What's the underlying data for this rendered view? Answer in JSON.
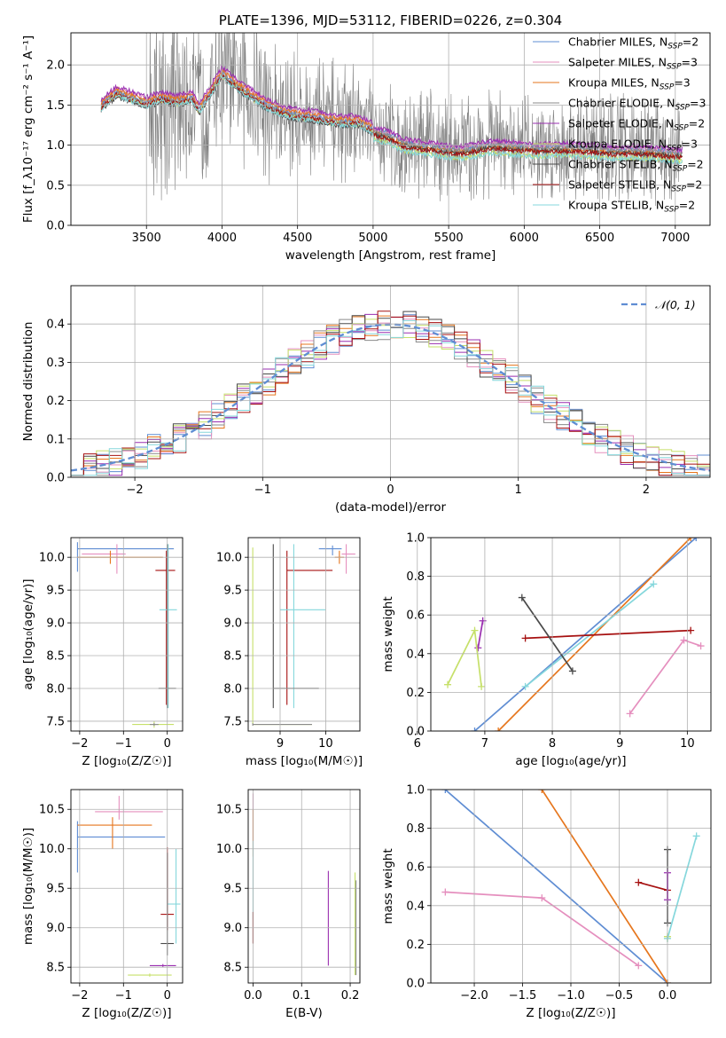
{
  "colors": {
    "Chabrier MILES": "#5f8dd3",
    "Salpeter MILES": "#e58fbe",
    "Kroupa MILES": "#e6761d",
    "Chabrier ELODIE": "#8a8a8a",
    "Salpeter ELODIE": "#9a2fb0",
    "Kroupa ELODIE": "#c6e06a",
    "Chabrier STELIB": "#4a4a4a",
    "Salpeter STELIB": "#a61010",
    "Kroupa STELIB": "#85d7dc"
  },
  "chart_data": [
    {
      "id": "spectrum",
      "type": "line",
      "title": "PLATE=1396, MJD=53112, FIBERID=0226, z=0.304",
      "xlabel": "wavelength [Angstrom, rest frame]",
      "ylabel": "Flux [f_λ10⁻¹⁷ erg cm⁻² s⁻¹ A⁻¹]",
      "xlim": [
        3000,
        7230
      ],
      "ylim": [
        0,
        2.4
      ],
      "xticks": [
        "3500",
        "4000",
        "4500",
        "5000",
        "5500",
        "6000",
        "6500",
        "7000"
      ],
      "yticks": [
        "0.0",
        "0.5",
        "1.0",
        "1.5",
        "2.0"
      ],
      "legend_position": "top-right",
      "legend": [
        {
          "model": "Chabrier MILES",
          "label": "Chabrier MILES, N",
          "sub": "SSP",
          "eq": "=2"
        },
        {
          "model": "Salpeter MILES",
          "label": "Salpeter MILES, N",
          "sub": "SSP",
          "eq": "=3"
        },
        {
          "model": "Kroupa MILES",
          "label": "Kroupa MILES, N",
          "sub": "SSP",
          "eq": "=3"
        },
        {
          "model": "Chabrier ELODIE",
          "label": "Chabrier ELODIE, N",
          "sub": "SSP",
          "eq": "=3"
        },
        {
          "model": "Salpeter ELODIE",
          "label": "Salpeter ELODIE, N",
          "sub": "SSP",
          "eq": "=2"
        },
        {
          "model": "Kroupa ELODIE",
          "label": "Kroupa ELODIE, N",
          "sub": "SSP",
          "eq": "=3"
        },
        {
          "model": "Chabrier STELIB",
          "label": "Chabrier STELIB, N",
          "sub": "SSP",
          "eq": "=2"
        },
        {
          "model": "Salpeter STELIB",
          "label": "Salpeter STELIB, N",
          "sub": "SSP",
          "eq": "=2"
        },
        {
          "model": "Kroupa STELIB",
          "label": "Kroupa STELIB, N",
          "sub": "SSP",
          "eq": "=2"
        }
      ],
      "data_range": [
        3200,
        7050
      ],
      "continuum": [
        [
          3200,
          1.5
        ],
        [
          3300,
          1.66
        ],
        [
          3400,
          1.6
        ],
        [
          3500,
          1.53
        ],
        [
          3600,
          1.6
        ],
        [
          3700,
          1.55
        ],
        [
          3800,
          1.6
        ],
        [
          3850,
          1.45
        ],
        [
          3900,
          1.6
        ],
        [
          3950,
          1.75
        ],
        [
          4000,
          1.9
        ],
        [
          4100,
          1.75
        ],
        [
          4200,
          1.62
        ],
        [
          4300,
          1.5
        ],
        [
          4400,
          1.42
        ],
        [
          4500,
          1.38
        ],
        [
          4600,
          1.36
        ],
        [
          4700,
          1.32
        ],
        [
          4800,
          1.3
        ],
        [
          4900,
          1.3
        ],
        [
          5000,
          1.2
        ],
        [
          5100,
          1.15
        ],
        [
          5200,
          1.05
        ],
        [
          5300,
          1.02
        ],
        [
          5400,
          1.0
        ],
        [
          5500,
          0.97
        ],
        [
          5600,
          0.96
        ],
        [
          5700,
          1.0
        ],
        [
          5800,
          1.03
        ],
        [
          5900,
          1.01
        ],
        [
          6000,
          1.0
        ],
        [
          6100,
          0.98
        ],
        [
          6200,
          1.0
        ],
        [
          6300,
          0.99
        ],
        [
          6400,
          0.98
        ],
        [
          6500,
          0.97
        ],
        [
          6600,
          0.95
        ],
        [
          6700,
          0.96
        ],
        [
          6800,
          0.95
        ],
        [
          6900,
          0.94
        ],
        [
          7000,
          0.92
        ],
        [
          7050,
          0.92
        ]
      ]
    },
    {
      "id": "residuals",
      "type": "line",
      "xlabel": "(data-model)/error",
      "ylabel": "Normed distribution",
      "xlim": [
        -2.5,
        2.5
      ],
      "ylim": [
        0,
        0.5
      ],
      "xticks": [
        "−2",
        "−1",
        "0",
        "1",
        "2"
      ],
      "yticks": [
        "0.0",
        "0.1",
        "0.2",
        "0.3",
        "0.4"
      ],
      "legend": [
        {
          "label": "𝒩(0, 1)"
        }
      ],
      "legend_position": "top-right",
      "gaussian": {
        "mu": 0,
        "sigma": 1
      }
    },
    {
      "id": "age_vs_Z",
      "type": "errorbar",
      "xlabel": "Z [log₁₀(Z/Z☉)]",
      "ylabel": "age  [log₁₀(age/yr)]",
      "xlim": [
        -2.2,
        0.35
      ],
      "ylim": [
        7.35,
        10.3
      ],
      "xticks": [
        "−2",
        "−1",
        "0"
      ],
      "yticks": [
        "7.5",
        "8.0",
        "8.5",
        "9.0",
        "9.5",
        "10.0"
      ],
      "points": [
        {
          "model": "Chabrier MILES",
          "x": -2.05,
          "xerr": [
            0,
            2.2
          ],
          "y": 10.13,
          "yerr": [
            0.35,
            0.1
          ]
        },
        {
          "model": "Salpeter MILES",
          "x": -1.15,
          "xerr": [
            0.8,
            0.2
          ],
          "y": 10.05,
          "yerr": [
            0.3,
            0.15
          ]
        },
        {
          "model": "Kroupa MILES",
          "x": -1.3,
          "xerr": [
            0.75,
            1.2
          ],
          "y": 10.0,
          "yerr": [
            0.1,
            0.1
          ]
        },
        {
          "model": "Salpeter STELIB",
          "x": -0.02,
          "xerr": [
            0.25,
            0.2
          ],
          "y": 9.8,
          "yerr": [
            2.05,
            0.3
          ]
        },
        {
          "model": "Kroupa STELIB",
          "x": 0.02,
          "xerr": [
            0.2,
            0.2
          ],
          "y": 9.2,
          "yerr": [
            1.5,
            1.0
          ]
        },
        {
          "model": "Chabrier STELIB",
          "x": 0.0,
          "xerr": [
            0.2,
            0.2
          ],
          "y": 8.0,
          "yerr": [
            0.3,
            2.2
          ]
        },
        {
          "model": "Kroupa ELODIE",
          "x": -0.3,
          "xerr": [
            0.5,
            0.45
          ],
          "y": 7.45,
          "yerr": [
            0.05,
            0.05
          ]
        },
        {
          "model": "Chabrier ELODIE",
          "x": -0.3,
          "xerr": [
            0.1,
            0.1
          ],
          "y": 7.45,
          "yerr": [
            0.02,
            0.02
          ]
        }
      ]
    },
    {
      "id": "age_vs_mass",
      "type": "errorbar",
      "xlabel": "mass [log₁₀(M/M☉)]",
      "ylabel": "",
      "xlim": [
        8.3,
        10.75
      ],
      "ylim": [
        7.35,
        10.3
      ],
      "xticks": [
        "9",
        "10"
      ],
      "yticks": [
        "7.5",
        "8.0",
        "8.5",
        "9.0",
        "9.5",
        "10.0"
      ],
      "points": [
        {
          "model": "Chabrier MILES",
          "x": 10.15,
          "xerr": [
            0.3,
            0.2
          ],
          "y": 10.13,
          "yerr": [
            0.1,
            0.05
          ]
        },
        {
          "model": "Salpeter MILES",
          "x": 10.45,
          "xerr": [
            0.1,
            0.2
          ],
          "y": 10.05,
          "yerr": [
            0.3,
            0.15
          ]
        },
        {
          "model": "Kroupa MILES",
          "x": 10.3,
          "xerr": [
            0.1,
            0.1
          ],
          "y": 10.0,
          "yerr": [
            0.1,
            0.1
          ]
        },
        {
          "model": "Salpeter STELIB",
          "x": 9.15,
          "xerr": [
            0,
            1.0
          ],
          "y": 9.8,
          "yerr": [
            2.05,
            0.3
          ]
        },
        {
          "model": "Kroupa STELIB",
          "x": 9.3,
          "xerr": [
            0.3,
            0.7
          ],
          "y": 9.2,
          "yerr": [
            1.5,
            1.0
          ]
        },
        {
          "model": "Chabrier STELIB",
          "x": 8.85,
          "xerr": [
            0,
            1.0
          ],
          "y": 8.0,
          "yerr": [
            0.3,
            2.2
          ]
        },
        {
          "model": "Kroupa ELODIE",
          "x": 8.4,
          "xerr": [
            0,
            1.3
          ],
          "y": 7.45,
          "yerr": [
            0,
            2.7
          ]
        },
        {
          "model": "Chabrier ELODIE",
          "x": 8.4,
          "xerr": [
            0,
            1.3
          ],
          "y": 7.45,
          "yerr": [
            0.02,
            0.02
          ]
        }
      ]
    },
    {
      "id": "weight_vs_age",
      "type": "line",
      "xlabel": "age  [log₁₀(age/yr)]",
      "ylabel": "mass weight",
      "xlim": [
        6.2,
        10.35
      ],
      "ylim": [
        0,
        1
      ],
      "xticks": [
        "6",
        "7",
        "8",
        "9",
        "10"
      ],
      "yticks": [
        "0.0",
        "0.2",
        "0.4",
        "0.6",
        "0.8",
        "1.0"
      ],
      "series": [
        {
          "model": "Chabrier MILES",
          "x": [
            6.85,
            10.13
          ],
          "y": [
            0.0,
            1.0
          ]
        },
        {
          "model": "Kroupa MILES",
          "x": [
            7.2,
            10.05
          ],
          "y": [
            0.0,
            1.0
          ]
        },
        {
          "model": "Kroupa STELIB",
          "x": [
            7.6,
            9.5
          ],
          "y": [
            0.23,
            0.76
          ]
        },
        {
          "model": "Salpeter MILES",
          "x": [
            9.15,
            9.95,
            10.2
          ],
          "y": [
            0.09,
            0.47,
            0.44
          ]
        },
        {
          "model": "Salpeter STELIB",
          "x": [
            7.6,
            10.05
          ],
          "y": [
            0.48,
            0.52
          ]
        },
        {
          "model": "Chabrier STELIB",
          "x": [
            7.55,
            8.3
          ],
          "y": [
            0.69,
            0.31
          ]
        },
        {
          "model": "Salpeter ELODIE",
          "x": [
            6.9,
            6.97
          ],
          "y": [
            0.43,
            0.57
          ]
        },
        {
          "model": "Kroupa ELODIE",
          "x": [
            6.45,
            6.85,
            6.95
          ],
          "y": [
            0.24,
            0.52,
            0.23
          ]
        }
      ]
    },
    {
      "id": "mass_vs_Z",
      "type": "errorbar",
      "xlabel": "Z [log₁₀(Z/Z☉)]",
      "ylabel": "mass [log₁₀(M/M☉)]",
      "xlim": [
        -2.2,
        0.35
      ],
      "ylim": [
        8.3,
        10.75
      ],
      "xticks": [
        "−2",
        "−1",
        "0"
      ],
      "yticks": [
        "8.5",
        "9.0",
        "9.5",
        "10.0",
        "10.5"
      ],
      "points": [
        {
          "model": "Chabrier MILES",
          "x": -2.05,
          "xerr": [
            0,
            2.0
          ],
          "y": 10.15,
          "yerr": [
            0.45,
            0.2
          ]
        },
        {
          "model": "Salpeter MILES",
          "x": -1.1,
          "xerr": [
            0.55,
            1.0
          ],
          "y": 10.47,
          "yerr": [
            0.1,
            0.2
          ]
        },
        {
          "model": "Kroupa MILES",
          "x": -1.25,
          "xerr": [
            0.8,
            0.9
          ],
          "y": 10.3,
          "yerr": [
            0.3,
            0.1
          ]
        },
        {
          "model": "Salpeter STELIB",
          "x": 0.0,
          "xerr": [
            0.15,
            0.15
          ],
          "y": 9.17,
          "yerr": [
            0.2,
            0.85
          ]
        },
        {
          "model": "Kroupa STELIB",
          "x": 0.2,
          "xerr": [
            0.2,
            0.1
          ],
          "y": 9.3,
          "yerr": [
            0.5,
            0.7
          ]
        },
        {
          "model": "Chabrier STELIB",
          "x": 0.0,
          "xerr": [
            0.15,
            0.15
          ],
          "y": 8.8,
          "yerr": [
            0.15,
            1.15
          ]
        },
        {
          "model": "Salpeter ELODIE",
          "x": -0.1,
          "xerr": [
            0.3,
            0.3
          ],
          "y": 8.52,
          "yerr": [
            0.02,
            0.02
          ]
        },
        {
          "model": "Kroupa ELODIE",
          "x": -0.4,
          "xerr": [
            0.5,
            0.5
          ],
          "y": 8.4,
          "yerr": [
            0.02,
            0.02
          ]
        }
      ]
    },
    {
      "id": "mass_vs_EBV",
      "type": "errorbar",
      "xlabel": "E(B-V)",
      "ylabel": "",
      "xlim": [
        -0.01,
        0.22
      ],
      "ylim": [
        8.3,
        10.75
      ],
      "xticks": [
        "0.0",
        "0.1",
        "0.2"
      ],
      "yticks": [
        "8.5",
        "9.0",
        "9.5",
        "10.0",
        "10.5"
      ],
      "points": [
        {
          "model": "Salpeter MILES",
          "x": 0.0,
          "xerr": [
            0,
            0
          ],
          "y": 10.4,
          "yerr": [
            0.3,
            0.3
          ]
        },
        {
          "model": "Kroupa MILES",
          "x": 0.0,
          "xerr": [
            0,
            0
          ],
          "y": 10.2,
          "yerr": [
            0.3,
            0.3
          ]
        },
        {
          "model": "Kroupa STELIB",
          "x": 0.0,
          "xerr": [
            0,
            0
          ],
          "y": 9.6,
          "yerr": [
            0.5,
            0.5
          ]
        },
        {
          "model": "Chabrier STELIB",
          "x": 0.0,
          "xerr": [
            0,
            0
          ],
          "y": 9.0,
          "yerr": [
            0.2,
            0.2
          ]
        },
        {
          "model": "Salpeter STELIB",
          "x": 0.0,
          "xerr": [
            0,
            0
          ],
          "y": 9.0,
          "yerr": [
            0.2,
            0.2
          ]
        },
        {
          "model": "Salpeter ELODIE",
          "x": 0.155,
          "xerr": [
            0,
            0
          ],
          "y": 9.12,
          "yerr": [
            0.6,
            0.6
          ]
        },
        {
          "model": "Kroupa ELODIE",
          "x": 0.21,
          "xerr": [
            0,
            0
          ],
          "y": 9.05,
          "yerr": [
            0.65,
            0.65
          ]
        },
        {
          "model": "Chabrier ELODIE",
          "x": 0.212,
          "xerr": [
            0,
            0
          ],
          "y": 9.0,
          "yerr": [
            0.6,
            0.6
          ]
        }
      ]
    },
    {
      "id": "weight_vs_Z",
      "type": "line",
      "xlabel": "Z [log₁₀(Z/Z☉)]",
      "ylabel": "mass weight",
      "xlim": [
        -2.45,
        0.45
      ],
      "ylim": [
        0,
        1
      ],
      "xticks": [
        "−2.0",
        "−1.5",
        "−1.0",
        "−0.5",
        "0.0"
      ],
      "yticks": [
        "0.0",
        "0.2",
        "0.4",
        "0.6",
        "0.8",
        "1.0"
      ],
      "series": [
        {
          "model": "Chabrier MILES",
          "x": [
            -2.3,
            0.0
          ],
          "y": [
            1.0,
            0.0
          ]
        },
        {
          "model": "Kroupa MILES",
          "x": [
            -1.3,
            0.0
          ],
          "y": [
            1.0,
            0.0
          ]
        },
        {
          "model": "Salpeter MILES",
          "x": [
            -2.3,
            -1.3,
            -0.3
          ],
          "y": [
            0.47,
            0.44,
            0.09
          ]
        },
        {
          "model": "Salpeter STELIB",
          "x": [
            -0.3,
            0.0
          ],
          "y": [
            0.52,
            0.48
          ]
        },
        {
          "model": "Chabrier STELIB",
          "x": [
            0.0,
            0.0
          ],
          "y": [
            0.69,
            0.31
          ]
        },
        {
          "model": "Salpeter ELODIE",
          "x": [
            0.0,
            0.0
          ],
          "y": [
            0.57,
            0.43
          ]
        },
        {
          "model": "Kroupa ELODIE",
          "x": [
            0.0,
            0.0
          ],
          "y": [
            0.24,
            0.23
          ]
        },
        {
          "model": "Kroupa STELIB",
          "x": [
            0.0,
            0.3
          ],
          "y": [
            0.23,
            0.76
          ]
        }
      ]
    }
  ]
}
